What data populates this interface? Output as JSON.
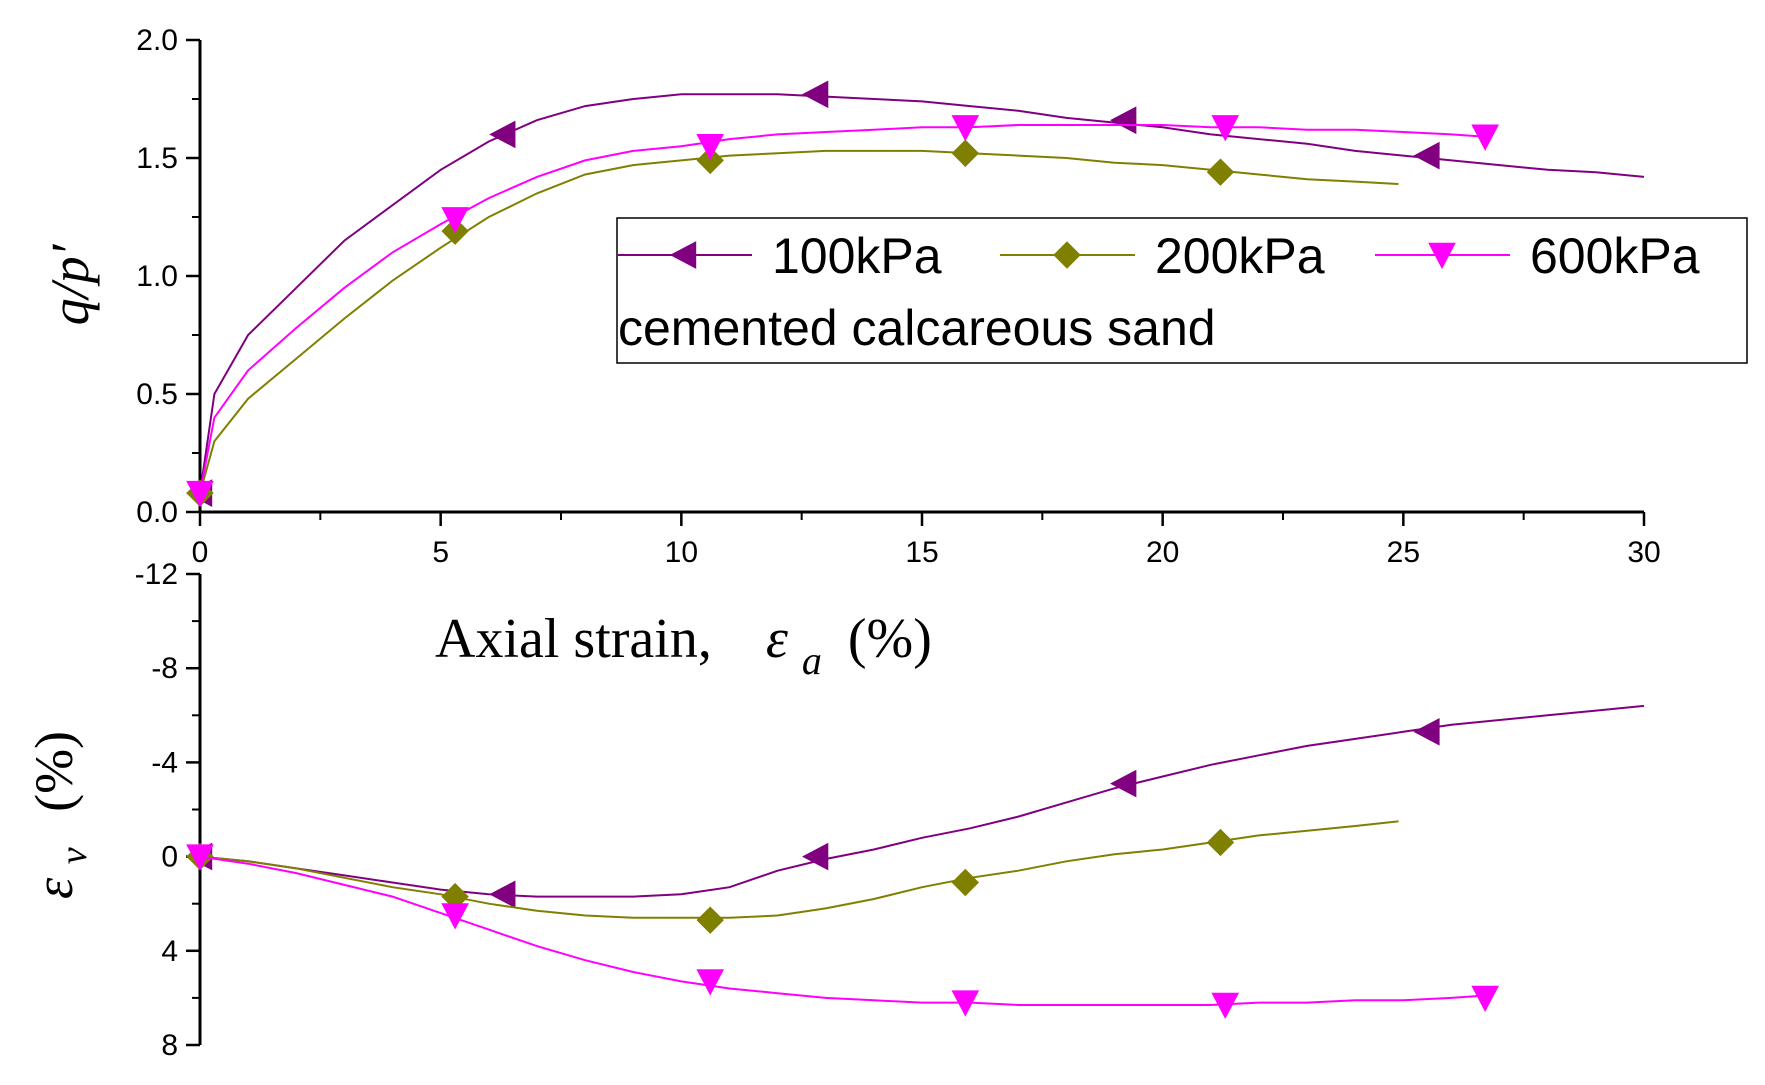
{
  "chart_data": [
    {
      "type": "line",
      "panel": "top",
      "ylabel": "q/p′",
      "xlabel": "",
      "xlim": [
        0,
        30
      ],
      "ylim": [
        0,
        2
      ],
      "x_ticks": [
        0,
        5,
        10,
        15,
        20,
        25,
        30
      ],
      "y_ticks": [
        0.0,
        0.5,
        1.0,
        1.5,
        2.0
      ],
      "y_tick_labels": [
        "0.0",
        "0.5",
        "1.0",
        "1.5",
        "2.0"
      ],
      "grid": false,
      "legend": {
        "placement": "top-right",
        "entries": [
          "100kPa",
          "200kPa",
          "600kPa"
        ],
        "note": "cemented calcareous sand"
      },
      "series": [
        {
          "name": "100kPa",
          "color": "#800080",
          "marker": "triangle-left",
          "x": [
            0,
            0.3,
            1,
            2,
            3,
            4,
            5,
            6,
            7,
            8,
            9,
            10,
            11,
            12,
            13,
            14,
            15,
            16,
            17,
            18,
            19,
            20,
            21,
            22,
            23,
            24,
            25,
            26,
            27,
            28,
            29,
            30
          ],
          "y": [
            0.08,
            0.5,
            0.75,
            0.95,
            1.15,
            1.3,
            1.45,
            1.57,
            1.66,
            1.72,
            1.75,
            1.77,
            1.77,
            1.77,
            1.76,
            1.75,
            1.74,
            1.72,
            1.7,
            1.67,
            1.65,
            1.63,
            1.6,
            1.58,
            1.56,
            1.53,
            1.51,
            1.49,
            1.47,
            1.45,
            1.44,
            1.42
          ],
          "marker_x": [
            0,
            6.3,
            12.8,
            19.2,
            25.5
          ],
          "marker_y": [
            0.08,
            1.6,
            1.77,
            1.66,
            1.51
          ]
        },
        {
          "name": "200kPa",
          "color": "#808000",
          "marker": "diamond",
          "x": [
            0,
            0.3,
            1,
            2,
            3,
            4,
            5,
            6,
            7,
            8,
            9,
            10,
            11,
            12,
            13,
            14,
            15,
            16,
            17,
            18,
            19,
            20,
            21,
            22,
            23,
            24,
            24.9
          ],
          "y": [
            0.08,
            0.3,
            0.48,
            0.65,
            0.82,
            0.98,
            1.12,
            1.25,
            1.35,
            1.43,
            1.47,
            1.49,
            1.51,
            1.52,
            1.53,
            1.53,
            1.53,
            1.52,
            1.51,
            1.5,
            1.48,
            1.47,
            1.45,
            1.43,
            1.41,
            1.4,
            1.39
          ],
          "marker_x": [
            0,
            5.3,
            10.6,
            15.9,
            21.2
          ],
          "marker_y": [
            0.08,
            1.19,
            1.49,
            1.52,
            1.44
          ]
        },
        {
          "name": "600kPa",
          "color": "#ff00ff",
          "marker": "triangle-down",
          "x": [
            0,
            0.3,
            1,
            2,
            3,
            4,
            5,
            6,
            7,
            8,
            9,
            10,
            11,
            12,
            13,
            14,
            15,
            16,
            17,
            18,
            19,
            20,
            21,
            22,
            23,
            24,
            25,
            26,
            26.7
          ],
          "y": [
            0.08,
            0.4,
            0.6,
            0.78,
            0.95,
            1.1,
            1.22,
            1.33,
            1.42,
            1.49,
            1.53,
            1.55,
            1.58,
            1.6,
            1.61,
            1.62,
            1.63,
            1.63,
            1.64,
            1.64,
            1.64,
            1.64,
            1.63,
            1.63,
            1.62,
            1.62,
            1.61,
            1.6,
            1.59
          ],
          "marker_x": [
            0,
            5.3,
            10.6,
            15.9,
            21.3,
            26.7
          ],
          "marker_y": [
            0.08,
            1.24,
            1.55,
            1.63,
            1.63,
            1.59
          ]
        }
      ]
    },
    {
      "type": "line",
      "panel": "bottom",
      "xlabel_prefix": "Axial strain,",
      "xlabel_symbol": "ε",
      "xlabel_subscript": "a",
      "xlabel_suffix": "(%)",
      "ylabel_symbol": "ε",
      "ylabel_subscript": "v",
      "ylabel_suffix": "(%)",
      "xlim": [
        0,
        30
      ],
      "ylim": [
        8,
        -12
      ],
      "y_ticks": [
        -12,
        -8,
        -4,
        0,
        4,
        8
      ],
      "y_tick_labels": [
        "-12",
        "-8",
        "-4",
        "0",
        "4",
        "8"
      ],
      "grid": false,
      "series": [
        {
          "name": "100kPa",
          "color": "#800080",
          "marker": "triangle-left",
          "x": [
            0,
            1,
            2,
            3,
            4,
            5,
            6,
            7,
            8,
            9,
            10,
            11,
            12,
            13,
            14,
            15,
            16,
            17,
            18,
            19,
            20,
            21,
            22,
            23,
            24,
            25,
            26,
            27,
            28,
            29,
            30
          ],
          "y": [
            0,
            0.2,
            0.5,
            0.8,
            1.1,
            1.4,
            1.6,
            1.7,
            1.7,
            1.7,
            1.6,
            1.3,
            0.6,
            0.1,
            -0.3,
            -0.8,
            -1.2,
            -1.7,
            -2.3,
            -2.9,
            -3.4,
            -3.9,
            -4.3,
            -4.7,
            -5.0,
            -5.3,
            -5.6,
            -5.8,
            -6.0,
            -6.2,
            -6.4
          ],
          "marker_x": [
            0,
            6.3,
            12.8,
            19.2,
            25.5
          ],
          "marker_y": [
            0,
            1.6,
            0,
            -3.1,
            -5.3
          ]
        },
        {
          "name": "200kPa",
          "color": "#808000",
          "marker": "diamond",
          "x": [
            0,
            1,
            2,
            3,
            4,
            5,
            6,
            7,
            8,
            9,
            10,
            11,
            12,
            13,
            14,
            15,
            16,
            17,
            18,
            19,
            20,
            21,
            22,
            23,
            24,
            24.9
          ],
          "y": [
            0,
            0.2,
            0.5,
            0.9,
            1.3,
            1.6,
            2.0,
            2.3,
            2.5,
            2.6,
            2.6,
            2.6,
            2.5,
            2.2,
            1.8,
            1.3,
            0.9,
            0.6,
            0.2,
            -0.1,
            -0.3,
            -0.6,
            -0.9,
            -1.1,
            -1.3,
            -1.5
          ],
          "marker_x": [
            0,
            5.3,
            10.6,
            15.9,
            21.2
          ],
          "marker_y": [
            0,
            1.7,
            2.7,
            1.1,
            -0.6
          ]
        },
        {
          "name": "600kPa",
          "color": "#ff00ff",
          "marker": "triangle-down",
          "x": [
            0,
            1,
            2,
            3,
            4,
            5,
            6,
            7,
            8,
            9,
            10,
            11,
            12,
            13,
            14,
            15,
            16,
            17,
            18,
            19,
            20,
            21,
            22,
            23,
            24,
            25,
            26,
            26.7
          ],
          "y": [
            0,
            0.3,
            0.7,
            1.2,
            1.7,
            2.4,
            3.1,
            3.8,
            4.4,
            4.9,
            5.3,
            5.6,
            5.8,
            6.0,
            6.1,
            6.2,
            6.2,
            6.3,
            6.3,
            6.3,
            6.3,
            6.3,
            6.2,
            6.2,
            6.1,
            6.1,
            6.0,
            5.9
          ],
          "marker_x": [
            0,
            5.3,
            10.6,
            15.9,
            21.3,
            26.7
          ],
          "marker_y": [
            0,
            2.5,
            5.3,
            6.2,
            6.3,
            6.0
          ]
        }
      ]
    }
  ],
  "x_tick_labels": [
    "0",
    "5",
    "10",
    "15",
    "20",
    "25",
    "30"
  ]
}
